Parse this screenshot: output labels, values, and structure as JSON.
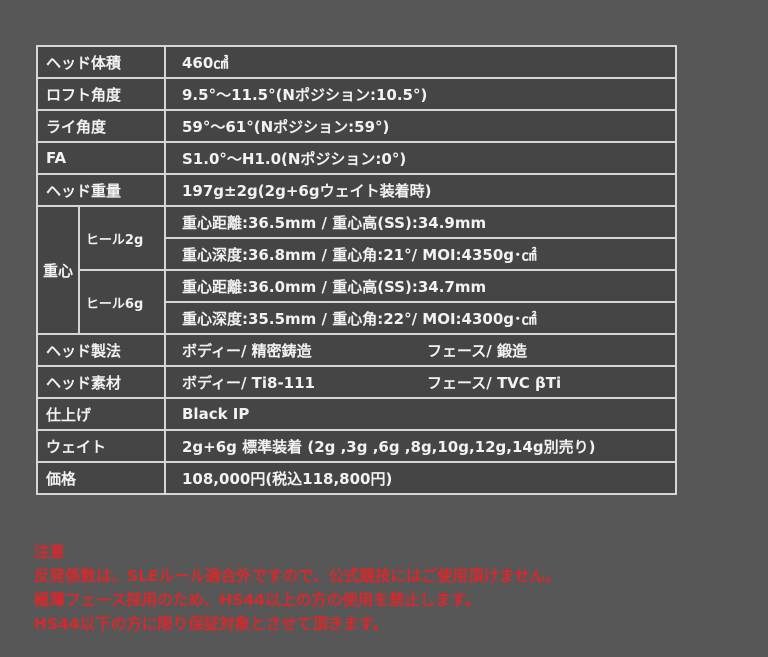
{
  "specs": {
    "head_volume": {
      "label": "ヘッド体積",
      "value": "460㎤"
    },
    "loft": {
      "label": "ロフト角度",
      "value": "9.5°〜11.5°(Nポジション:10.5°)"
    },
    "lie": {
      "label": "ライ角度",
      "value": "59°〜61°(Nポジション:59°)"
    },
    "fa": {
      "label": "FA",
      "value": "S1.0°〜H1.0(Nポジション:0°)"
    },
    "head_weight": {
      "label": "ヘッド重量",
      "value": "197g±2g(2g+6gウェイト装着時)"
    },
    "cg": {
      "label": "重心",
      "heel2g": {
        "label": "ヒール2g",
        "line1": "重心距離:36.5mm / 重心高(SS):34.9mm",
        "line2": "重心深度:36.8mm / 重心角:21°/ MOI:4350g･㎠"
      },
      "heel6g": {
        "label": "ヒール6g",
        "line1": "重心距離:36.0mm / 重心高(SS):34.7mm",
        "line2": "重心深度:35.5mm / 重心角:22°/ MOI:4300g･㎠"
      }
    },
    "method": {
      "label": "ヘッド製法",
      "body": "ボディー/ 精密鋳造",
      "face": "フェース/ 鍛造"
    },
    "material": {
      "label": "ヘッド素材",
      "body": "ボディー/ Ti8-111",
      "face": "フェース/ TVC βTi"
    },
    "finish": {
      "label": "仕上げ",
      "value": "Black IP"
    },
    "weight": {
      "label": "ウェイト",
      "value": "2g+6g 標準装着 (2g ,3g ,6g ,8g,10g,12g,14g別売り)"
    },
    "price": {
      "label": "価格",
      "value": "108,000円(税込118,800円)"
    }
  },
  "notice": {
    "title": "注意",
    "lines": [
      "反発係数は、SLEルール適合外ですので、公式競技にはご使用頂けません。",
      "極薄フェース採用のため、HS44以上の方の使用を禁止します。",
      "HS44以下の方に限り保証対象とさせて頂きます。"
    ],
    "color": "#d8282b"
  }
}
